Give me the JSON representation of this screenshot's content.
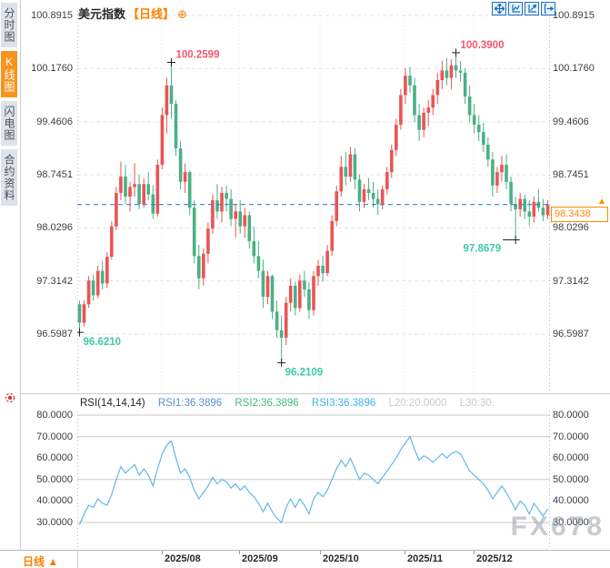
{
  "window": {
    "symbol_title": "美元指数",
    "period_tag": "【日线】",
    "add_icon": "⊕"
  },
  "sidebar": {
    "tabs": [
      {
        "label": "分时图",
        "active": false
      },
      {
        "label": "K线图",
        "active": true
      },
      {
        "label": "闪电图",
        "active": false
      },
      {
        "label": "合约资料",
        "active": false
      }
    ]
  },
  "toolbar": {
    "icons": [
      "pan-icon",
      "fit-chart-icon",
      "scale-chart-icon",
      "exit-chart-icon"
    ]
  },
  "bottom_bar": {
    "period_label": "日线 ▲",
    "dates": [
      "2025/08",
      "2025/09",
      "2025/10",
      "2025/11",
      "2025/12"
    ]
  },
  "watermark": "FX678",
  "current_price": {
    "label": "98.3438",
    "arrow": "▲"
  },
  "colors": {
    "up": "#ea5455",
    "down": "#4bb086",
    "up_text": "#f5566b",
    "down_text": "#3ec9a7",
    "cur_line": "#2f80e0",
    "orange": "#ff8a00",
    "rsi_line": "#62b8e8",
    "grid_dash": "#e3e4e8",
    "grid_solid": "#c9c9c9",
    "edge_dot": "#b5b9c0",
    "toolbar_blue": "#1d6fbe"
  },
  "chart_data": [
    {
      "type": "candlestick",
      "title": "美元指数 日线",
      "y_ticks": [
        "100.8915",
        "100.1760",
        "99.4606",
        "98.7451",
        "98.0296",
        "97.3142",
        "96.5987"
      ],
      "x_ticks": [
        "2025/08",
        "2025/09",
        "2025/10",
        "2025/11",
        "2025/12"
      ],
      "current_price": 98.3438,
      "annotations": [
        {
          "label": "100.2599",
          "index": 20,
          "kind": "high",
          "trend": "up"
        },
        {
          "label": "100.3900",
          "index": 82,
          "kind": "high",
          "trend": "up"
        },
        {
          "label": "96.6210",
          "index": 0,
          "kind": "low",
          "trend": "down"
        },
        {
          "label": "96.2109",
          "index": 44,
          "kind": "low",
          "trend": "down"
        },
        {
          "label": "97.8679",
          "index": 95,
          "kind": "low",
          "trend": "down",
          "label_side": "left"
        }
      ],
      "candles": [
        [
          97.0,
          97.05,
          96.621,
          96.75
        ],
        [
          96.75,
          97.05,
          96.7,
          97.0
        ],
        [
          97.0,
          97.38,
          96.95,
          97.32
        ],
        [
          97.32,
          97.4,
          97.05,
          97.12
        ],
        [
          97.12,
          97.52,
          97.08,
          97.45
        ],
        [
          97.45,
          97.58,
          97.2,
          97.28
        ],
        [
          97.28,
          97.7,
          97.22,
          97.64
        ],
        [
          97.64,
          98.12,
          97.6,
          98.05
        ],
        [
          98.05,
          98.58,
          98.0,
          98.5
        ],
        [
          98.5,
          98.92,
          98.4,
          98.72
        ],
        [
          98.72,
          98.88,
          98.35,
          98.45
        ],
        [
          98.45,
          98.65,
          98.25,
          98.58
        ],
        [
          98.58,
          98.9,
          98.45,
          98.62
        ],
        [
          98.62,
          98.75,
          98.28,
          98.35
        ],
        [
          98.35,
          98.7,
          98.3,
          98.62
        ],
        [
          98.62,
          98.78,
          98.4,
          98.48
        ],
        [
          98.48,
          98.6,
          98.15,
          98.22
        ],
        [
          98.22,
          98.95,
          98.18,
          98.88
        ],
        [
          98.88,
          99.65,
          98.82,
          99.55
        ],
        [
          99.55,
          100.05,
          99.3,
          99.95
        ],
        [
          99.95,
          100.2599,
          99.5,
          99.7
        ],
        [
          99.7,
          99.75,
          99.0,
          99.1
        ],
        [
          99.1,
          99.2,
          98.55,
          98.65
        ],
        [
          98.65,
          98.9,
          98.5,
          98.78
        ],
        [
          98.78,
          98.8,
          98.2,
          98.3
        ],
        [
          98.3,
          98.4,
          97.55,
          97.65
        ],
        [
          97.65,
          97.8,
          97.2,
          97.35
        ],
        [
          97.35,
          97.75,
          97.25,
          97.68
        ],
        [
          97.68,
          98.1,
          97.55,
          98.02
        ],
        [
          98.02,
          98.48,
          97.95,
          98.4
        ],
        [
          98.4,
          98.62,
          98.15,
          98.25
        ],
        [
          98.25,
          98.58,
          98.1,
          98.5
        ],
        [
          98.5,
          98.6,
          98.25,
          98.42
        ],
        [
          98.42,
          98.55,
          98.05,
          98.15
        ],
        [
          98.15,
          98.35,
          97.9,
          98.25
        ],
        [
          98.25,
          98.4,
          97.95,
          98.05
        ],
        [
          98.05,
          98.3,
          97.9,
          98.2
        ],
        [
          98.2,
          98.25,
          97.75,
          97.85
        ],
        [
          97.85,
          98.05,
          97.55,
          97.65
        ],
        [
          97.65,
          97.85,
          97.35,
          97.45
        ],
        [
          97.45,
          97.6,
          96.95,
          97.1
        ],
        [
          97.1,
          97.45,
          97.0,
          97.38
        ],
        [
          97.38,
          97.4,
          96.8,
          96.9
        ],
        [
          96.9,
          97.05,
          96.55,
          96.65
        ],
        [
          96.65,
          96.85,
          96.2109,
          96.55
        ],
        [
          96.55,
          97.1,
          96.45,
          97.02
        ],
        [
          97.02,
          97.35,
          96.9,
          97.25
        ],
        [
          97.25,
          97.3,
          96.85,
          96.95
        ],
        [
          96.95,
          97.4,
          96.9,
          97.32
        ],
        [
          97.32,
          97.45,
          97.1,
          97.2
        ],
        [
          97.2,
          97.3,
          96.8,
          96.92
        ],
        [
          96.92,
          97.45,
          96.85,
          97.38
        ],
        [
          97.38,
          97.6,
          97.25,
          97.52
        ],
        [
          97.52,
          97.65,
          97.3,
          97.42
        ],
        [
          97.42,
          97.8,
          97.38,
          97.72
        ],
        [
          97.72,
          98.2,
          97.65,
          98.12
        ],
        [
          98.12,
          98.6,
          98.05,
          98.52
        ],
        [
          98.52,
          99.0,
          98.45,
          98.85
        ],
        [
          98.85,
          99.05,
          98.6,
          98.72
        ],
        [
          98.72,
          99.12,
          98.65,
          99.02
        ],
        [
          99.02,
          99.1,
          98.55,
          98.68
        ],
        [
          98.68,
          98.75,
          98.25,
          98.38
        ],
        [
          98.38,
          98.62,
          98.3,
          98.55
        ],
        [
          98.55,
          98.7,
          98.4,
          98.5
        ],
        [
          98.5,
          98.65,
          98.3,
          98.42
        ],
        [
          98.42,
          98.55,
          98.2,
          98.35
        ],
        [
          98.35,
          98.6,
          98.28,
          98.55
        ],
        [
          98.55,
          98.85,
          98.48,
          98.78
        ],
        [
          98.78,
          99.15,
          98.7,
          99.08
        ],
        [
          99.08,
          99.5,
          99.0,
          99.42
        ],
        [
          99.42,
          99.9,
          99.35,
          99.82
        ],
        [
          99.82,
          100.18,
          99.7,
          100.08
        ],
        [
          100.08,
          100.2,
          99.85,
          99.95
        ],
        [
          99.95,
          100.05,
          99.45,
          99.55
        ],
        [
          99.55,
          99.7,
          99.2,
          99.35
        ],
        [
          99.35,
          99.65,
          99.25,
          99.58
        ],
        [
          99.58,
          99.75,
          99.4,
          99.65
        ],
        [
          99.65,
          99.9,
          99.55,
          99.82
        ],
        [
          99.82,
          100.12,
          99.7,
          100.02
        ],
        [
          100.02,
          100.28,
          99.9,
          100.15
        ],
        [
          100.15,
          100.32,
          99.95,
          100.05
        ],
        [
          100.05,
          100.3,
          99.9,
          100.22
        ],
        [
          100.22,
          100.39,
          100.05,
          100.15
        ],
        [
          100.15,
          100.28,
          100.0,
          100.12
        ],
        [
          100.12,
          100.18,
          99.7,
          99.8
        ],
        [
          99.8,
          99.95,
          99.45,
          99.55
        ],
        [
          99.55,
          99.7,
          99.3,
          99.42
        ],
        [
          99.42,
          99.55,
          99.2,
          99.32
        ],
        [
          99.32,
          99.45,
          99.05,
          99.15
        ],
        [
          99.15,
          99.25,
          98.85,
          98.95
        ],
        [
          98.95,
          99.05,
          98.45,
          98.6
        ],
        [
          98.6,
          98.85,
          98.5,
          98.78
        ],
        [
          98.78,
          99.0,
          98.65,
          98.88
        ],
        [
          98.88,
          99.02,
          98.55,
          98.65
        ],
        [
          98.65,
          98.72,
          98.25,
          98.35
        ],
        [
          98.35,
          98.45,
          97.8679,
          98.28
        ],
        [
          98.28,
          98.5,
          98.18,
          98.42
        ],
        [
          98.42,
          98.48,
          98.15,
          98.25
        ],
        [
          98.25,
          98.4,
          98.05,
          98.18
        ],
        [
          98.18,
          98.45,
          98.1,
          98.38
        ],
        [
          98.38,
          98.55,
          98.25,
          98.3
        ],
        [
          98.3,
          98.42,
          98.12,
          98.2
        ],
        [
          98.2,
          98.4,
          98.15,
          98.3438
        ]
      ]
    },
    {
      "type": "line",
      "name": "RSI",
      "header": {
        "param": "RSI(14,14,14)",
        "rsi1": "RSI1:36.3896",
        "rsi2": "RSI2:36.3896",
        "rsi3": "RSI3:36.3896",
        "l20": "L20:20.0000",
        "l30": "L30:30."
      },
      "y_ticks": [
        "80.0000",
        "70.0000",
        "60.0000",
        "50.0000",
        "40.0000",
        "30.0000"
      ],
      "gridline_values": [
        80,
        70,
        50,
        30
      ],
      "ylim": [
        25,
        85
      ],
      "values": [
        29,
        34,
        38,
        37,
        41,
        39,
        38,
        43,
        50,
        56,
        53,
        55,
        57,
        52,
        55,
        52,
        47,
        55,
        62,
        66,
        68,
        60,
        53,
        55,
        51,
        45,
        41,
        44,
        47,
        51,
        48,
        50,
        49,
        46,
        48,
        45,
        47,
        44,
        42,
        39,
        35,
        39,
        35,
        32,
        30,
        37,
        41,
        37,
        41,
        38,
        34,
        41,
        44,
        42,
        45,
        50,
        55,
        59,
        56,
        60,
        55,
        50,
        53,
        52,
        50,
        48,
        51,
        54,
        57,
        60,
        64,
        67,
        70,
        64,
        59,
        61,
        60,
        58,
        60,
        62,
        60,
        62,
        63,
        62,
        58,
        54,
        52,
        50,
        48,
        45,
        41,
        44,
        47,
        44,
        40,
        36,
        40,
        38,
        34,
        39,
        36,
        33,
        36.39
      ]
    }
  ]
}
